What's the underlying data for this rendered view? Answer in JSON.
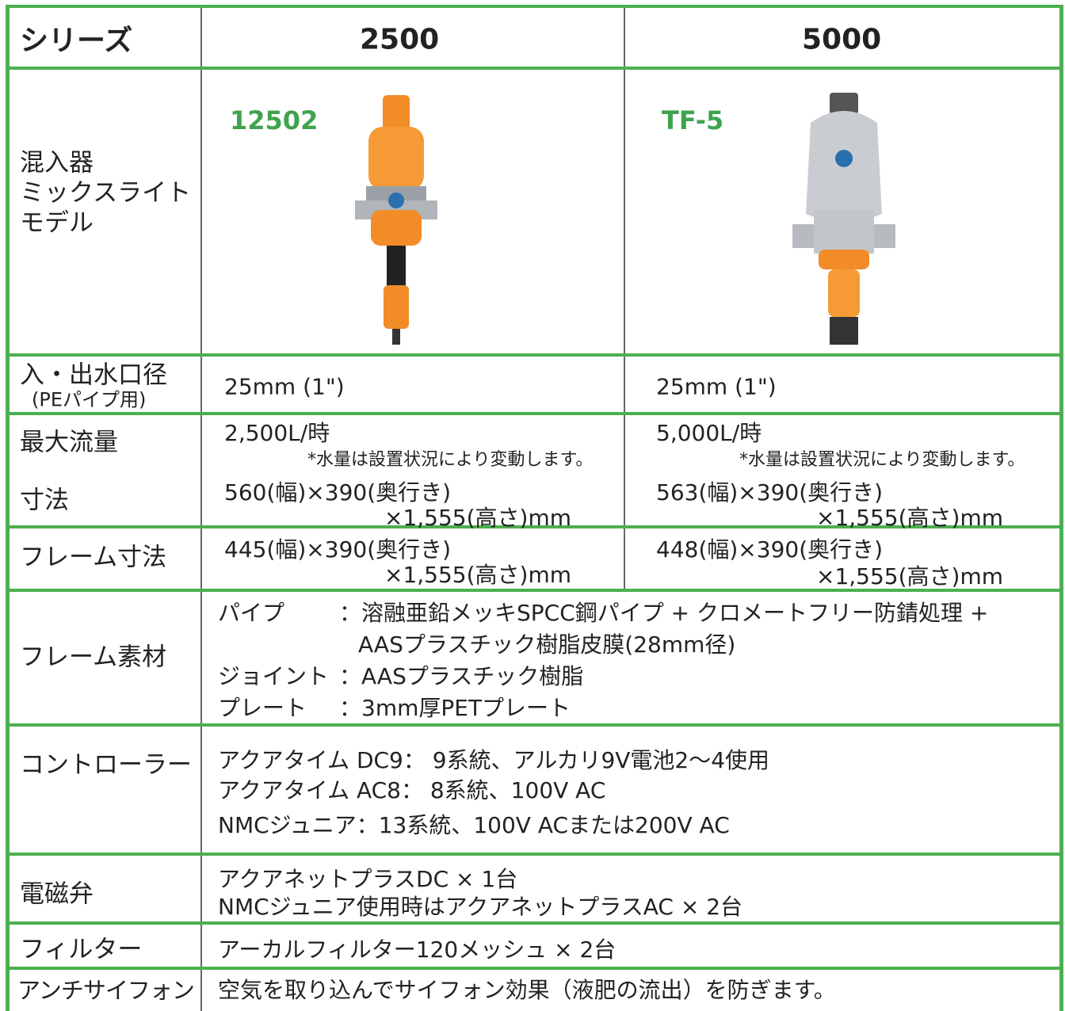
{
  "header": {
    "label": "シリーズ",
    "columns": [
      "2500",
      "5000"
    ]
  },
  "model_row": {
    "label": [
      "混入器",
      "ミックスライト",
      "モデル"
    ],
    "models": [
      "12502",
      "TF-5"
    ]
  },
  "port_row": {
    "label": "入・出水口径",
    "sublabel": "(PEパイプ用)",
    "values": [
      "25mm (1\")",
      "25mm (1\")"
    ]
  },
  "flow_size_row": {
    "labels": [
      "最大流量",
      "寸法"
    ],
    "columns": [
      {
        "flow": "2,500L/時",
        "note": "*水量は設置状況により変動します。",
        "size": [
          "560(幅)×390(奥行き)",
          "×1,555(高さ)mm"
        ]
      },
      {
        "flow": "5,000L/時",
        "note": "*水量は設置状況により変動します。",
        "size": [
          "563(幅)×390(奥行き)",
          "×1,555(高さ)mm"
        ]
      }
    ]
  },
  "frame_size_row": {
    "label": "フレーム寸法",
    "columns": [
      [
        "445(幅)×390(奥行き)",
        "×1,555(高さ)mm"
      ],
      [
        "448(幅)×390(奥行き)",
        "×1,555(高さ)mm"
      ]
    ]
  },
  "frame_material_row": {
    "label": "フレーム素材",
    "items": [
      {
        "key": "パイプ",
        "lines": [
          "：溶融亜鉛メッキSPCC鋼パイプ + クロメートフリー防錆処理 +",
          "AASプラスチック樹脂皮膜(28mm径)"
        ]
      },
      {
        "key": "ジョイント",
        "lines": [
          "：AASプラスチック樹脂"
        ]
      },
      {
        "key": "プレート",
        "lines": [
          "：3mm厚PETプレート"
        ]
      }
    ]
  },
  "controller_row": {
    "label": "コントローラー",
    "lines": [
      "アクアタイム DC9： 9系統、アルカリ9V電池2〜4使用",
      "アクアタイム AC8： 8系統、100V AC",
      "NMCジュニア：13系統、100V ACまたは200V AC"
    ]
  },
  "valve_row": {
    "label": "電磁弁",
    "lines": [
      "アクアネットプラスDC × 1台",
      "NMCジュニア使用時はアクアネットプラスAC × 2台"
    ]
  },
  "filter_row": {
    "label": "フィルター",
    "lines": [
      "アーカルフィルター120メッシュ × 2台"
    ]
  },
  "antisiphon_row": {
    "label": "アンチサイフォン",
    "lines": [
      "空気を取り込んでサイフォン効果（液肥の流出）を防ぎます。"
    ]
  }
}
